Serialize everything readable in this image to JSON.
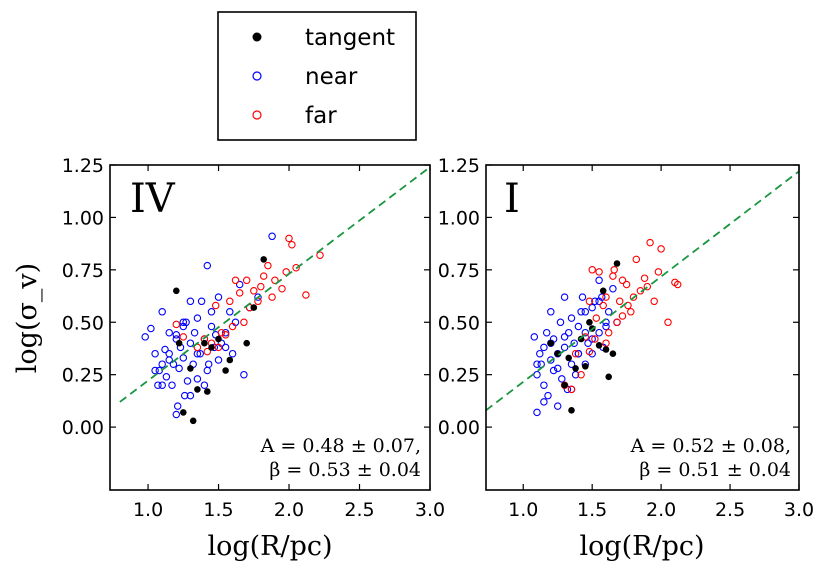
{
  "legend": {
    "entries": [
      {
        "label": "tangent",
        "color": "#000000",
        "marker": "filled-circle"
      },
      {
        "label": "near",
        "color": "#0000ff",
        "marker": "open-circle"
      },
      {
        "label": "far",
        "color": "#ff0000",
        "marker": "open-circle"
      }
    ]
  },
  "chart_data": [
    {
      "type": "scatter",
      "panel_label": "IV",
      "xlabel": "log(R/pc)",
      "ylabel": "log(σ_v)",
      "xlim": [
        0.73,
        3.0
      ],
      "ylim": [
        -0.3,
        1.25
      ],
      "xticks": [
        "1.0",
        "1.5",
        "2.0",
        "2.5",
        "3.0"
      ],
      "yticks": [
        "0.00",
        "0.25",
        "0.50",
        "0.75",
        "1.00",
        "1.25"
      ],
      "fit_line": {
        "x": [
          0.8,
          3.0
        ],
        "y": [
          0.12,
          1.24
        ],
        "color": "#1a9641",
        "style": "dashed"
      },
      "annotation": [
        "A = 0.48 ± 0.07,",
        "β = 0.53 ± 0.04"
      ],
      "series": [
        {
          "name": "tangent",
          "x": [
            1.2,
            1.22,
            1.25,
            1.3,
            1.32,
            1.35,
            1.4,
            1.42,
            1.45,
            1.5,
            1.55,
            1.58,
            1.7,
            1.75,
            1.82
          ],
          "y": [
            0.65,
            0.4,
            0.07,
            0.28,
            0.03,
            0.18,
            0.4,
            0.17,
            0.38,
            0.42,
            0.27,
            0.32,
            0.4,
            0.57,
            0.8
          ]
        },
        {
          "name": "near",
          "x": [
            0.98,
            1.02,
            1.05,
            1.07,
            1.08,
            1.1,
            1.1,
            1.12,
            1.13,
            1.15,
            1.15,
            1.17,
            1.18,
            1.2,
            1.2,
            1.21,
            1.22,
            1.23,
            1.25,
            1.25,
            1.26,
            1.27,
            1.28,
            1.3,
            1.3,
            1.32,
            1.33,
            1.35,
            1.35,
            1.37,
            1.38,
            1.4,
            1.4,
            1.42,
            1.43,
            1.45,
            1.45,
            1.47,
            1.5,
            1.5,
            1.52,
            1.55,
            1.55,
            1.58,
            1.6,
            1.62,
            1.65,
            1.68,
            1.72,
            1.78,
            1.88,
            1.05,
            1.1,
            1.15,
            1.2,
            1.25,
            1.3,
            1.35,
            1.42,
            1.48
          ],
          "y": [
            0.43,
            0.47,
            0.35,
            0.2,
            0.27,
            0.3,
            0.55,
            0.37,
            0.24,
            0.32,
            0.45,
            0.2,
            0.3,
            0.42,
            0.06,
            0.1,
            0.28,
            0.38,
            0.33,
            0.48,
            0.15,
            0.5,
            0.22,
            0.4,
            0.6,
            0.3,
            0.45,
            0.23,
            0.52,
            0.35,
            0.6,
            0.2,
            0.42,
            0.77,
            0.3,
            0.48,
            0.55,
            0.38,
            0.32,
            0.62,
            0.4,
            0.45,
            0.38,
            0.55,
            0.35,
            0.5,
            0.68,
            0.25,
            0.57,
            0.62,
            0.91,
            0.27,
            0.2,
            0.35,
            0.44,
            0.5,
            0.15,
            0.35,
            0.27,
            0.44
          ]
        },
        {
          "name": "far",
          "x": [
            1.2,
            1.25,
            1.35,
            1.4,
            1.42,
            1.45,
            1.48,
            1.5,
            1.52,
            1.55,
            1.58,
            1.6,
            1.62,
            1.65,
            1.68,
            1.7,
            1.72,
            1.75,
            1.78,
            1.8,
            1.82,
            1.85,
            1.88,
            1.9,
            1.95,
            1.98,
            2.0,
            2.02,
            2.05,
            2.12,
            2.22
          ],
          "y": [
            0.49,
            0.43,
            0.38,
            0.42,
            0.36,
            0.4,
            0.58,
            0.38,
            0.45,
            0.44,
            0.6,
            0.48,
            0.7,
            0.64,
            0.5,
            0.7,
            0.57,
            0.65,
            0.6,
            0.67,
            0.72,
            0.77,
            0.62,
            0.7,
            0.66,
            0.74,
            0.9,
            0.87,
            0.76,
            0.63,
            0.82
          ]
        }
      ]
    },
    {
      "type": "scatter",
      "panel_label": "I",
      "xlabel": "log(R/pc)",
      "ylabel": "",
      "xlim": [
        0.73,
        3.0
      ],
      "ylim": [
        -0.3,
        1.25
      ],
      "xticks": [
        "1.0",
        "1.5",
        "2.0",
        "2.5",
        "3.0"
      ],
      "yticks": [
        "0.00",
        "0.25",
        "0.50",
        "0.75",
        "1.00",
        "1.25"
      ],
      "fit_line": {
        "x": [
          0.73,
          3.0
        ],
        "y": [
          0.08,
          1.22
        ],
        "color": "#1a9641",
        "style": "dashed"
      },
      "annotation": [
        "A = 0.52 ± 0.08,",
        "β = 0.51 ± 0.04"
      ],
      "series": [
        {
          "name": "tangent",
          "x": [
            1.2,
            1.25,
            1.3,
            1.33,
            1.35,
            1.38,
            1.42,
            1.45,
            1.48,
            1.5,
            1.55,
            1.58,
            1.6,
            1.62,
            1.65,
            1.68
          ],
          "y": [
            0.4,
            0.35,
            0.2,
            0.33,
            0.08,
            0.28,
            0.42,
            0.29,
            0.5,
            0.47,
            0.39,
            0.65,
            0.37,
            0.24,
            0.35,
            0.78
          ]
        },
        {
          "name": "near",
          "x": [
            1.08,
            1.1,
            1.1,
            1.12,
            1.13,
            1.15,
            1.15,
            1.17,
            1.18,
            1.2,
            1.2,
            1.22,
            1.22,
            1.25,
            1.25,
            1.27,
            1.28,
            1.3,
            1.3,
            1.32,
            1.33,
            1.35,
            1.35,
            1.37,
            1.38,
            1.4,
            1.4,
            1.42,
            1.43,
            1.45,
            1.45,
            1.47,
            1.5,
            1.5,
            1.52,
            1.55,
            1.55,
            1.57,
            1.58,
            1.6,
            1.62,
            1.65,
            1.68,
            1.1,
            1.15,
            1.2,
            1.25,
            1.3,
            1.35,
            1.4,
            1.45,
            1.5,
            1.55,
            1.6
          ],
          "y": [
            0.43,
            0.25,
            0.07,
            0.35,
            0.3,
            0.38,
            0.2,
            0.45,
            0.15,
            0.32,
            0.55,
            0.27,
            0.42,
            0.1,
            0.35,
            0.5,
            0.23,
            0.38,
            0.62,
            0.18,
            0.45,
            0.3,
            0.52,
            0.4,
            0.25,
            0.48,
            0.35,
            0.55,
            0.62,
            0.3,
            0.45,
            0.4,
            0.57,
            0.35,
            0.6,
            0.45,
            0.7,
            0.62,
            0.38,
            0.5,
            0.55,
            0.66,
            0.5,
            0.3,
            0.12,
            0.4,
            0.28,
            0.43,
            0.18,
            0.35,
            0.55,
            0.42,
            0.6,
            0.48
          ]
        },
        {
          "name": "far",
          "x": [
            1.3,
            1.35,
            1.38,
            1.42,
            1.45,
            1.48,
            1.5,
            1.52,
            1.55,
            1.58,
            1.6,
            1.62,
            1.65,
            1.68,
            1.7,
            1.72,
            1.75,
            1.78,
            1.8,
            1.82,
            1.85,
            1.88,
            1.9,
            1.92,
            1.95,
            1.98,
            2.0,
            2.05,
            2.1,
            2.12,
            1.48,
            1.53,
            1.6,
            1.66,
            1.72,
            1.76
          ],
          "y": [
            0.2,
            0.18,
            0.35,
            0.25,
            0.43,
            0.36,
            0.75,
            0.42,
            0.74,
            0.58,
            0.4,
            0.45,
            0.72,
            0.5,
            0.6,
            0.53,
            0.68,
            0.55,
            0.62,
            0.8,
            0.65,
            0.71,
            0.67,
            0.88,
            0.6,
            0.74,
            0.85,
            0.5,
            0.69,
            0.68,
            0.6,
            0.52,
            0.62,
            0.75,
            0.7,
            0.58
          ]
        }
      ]
    }
  ]
}
